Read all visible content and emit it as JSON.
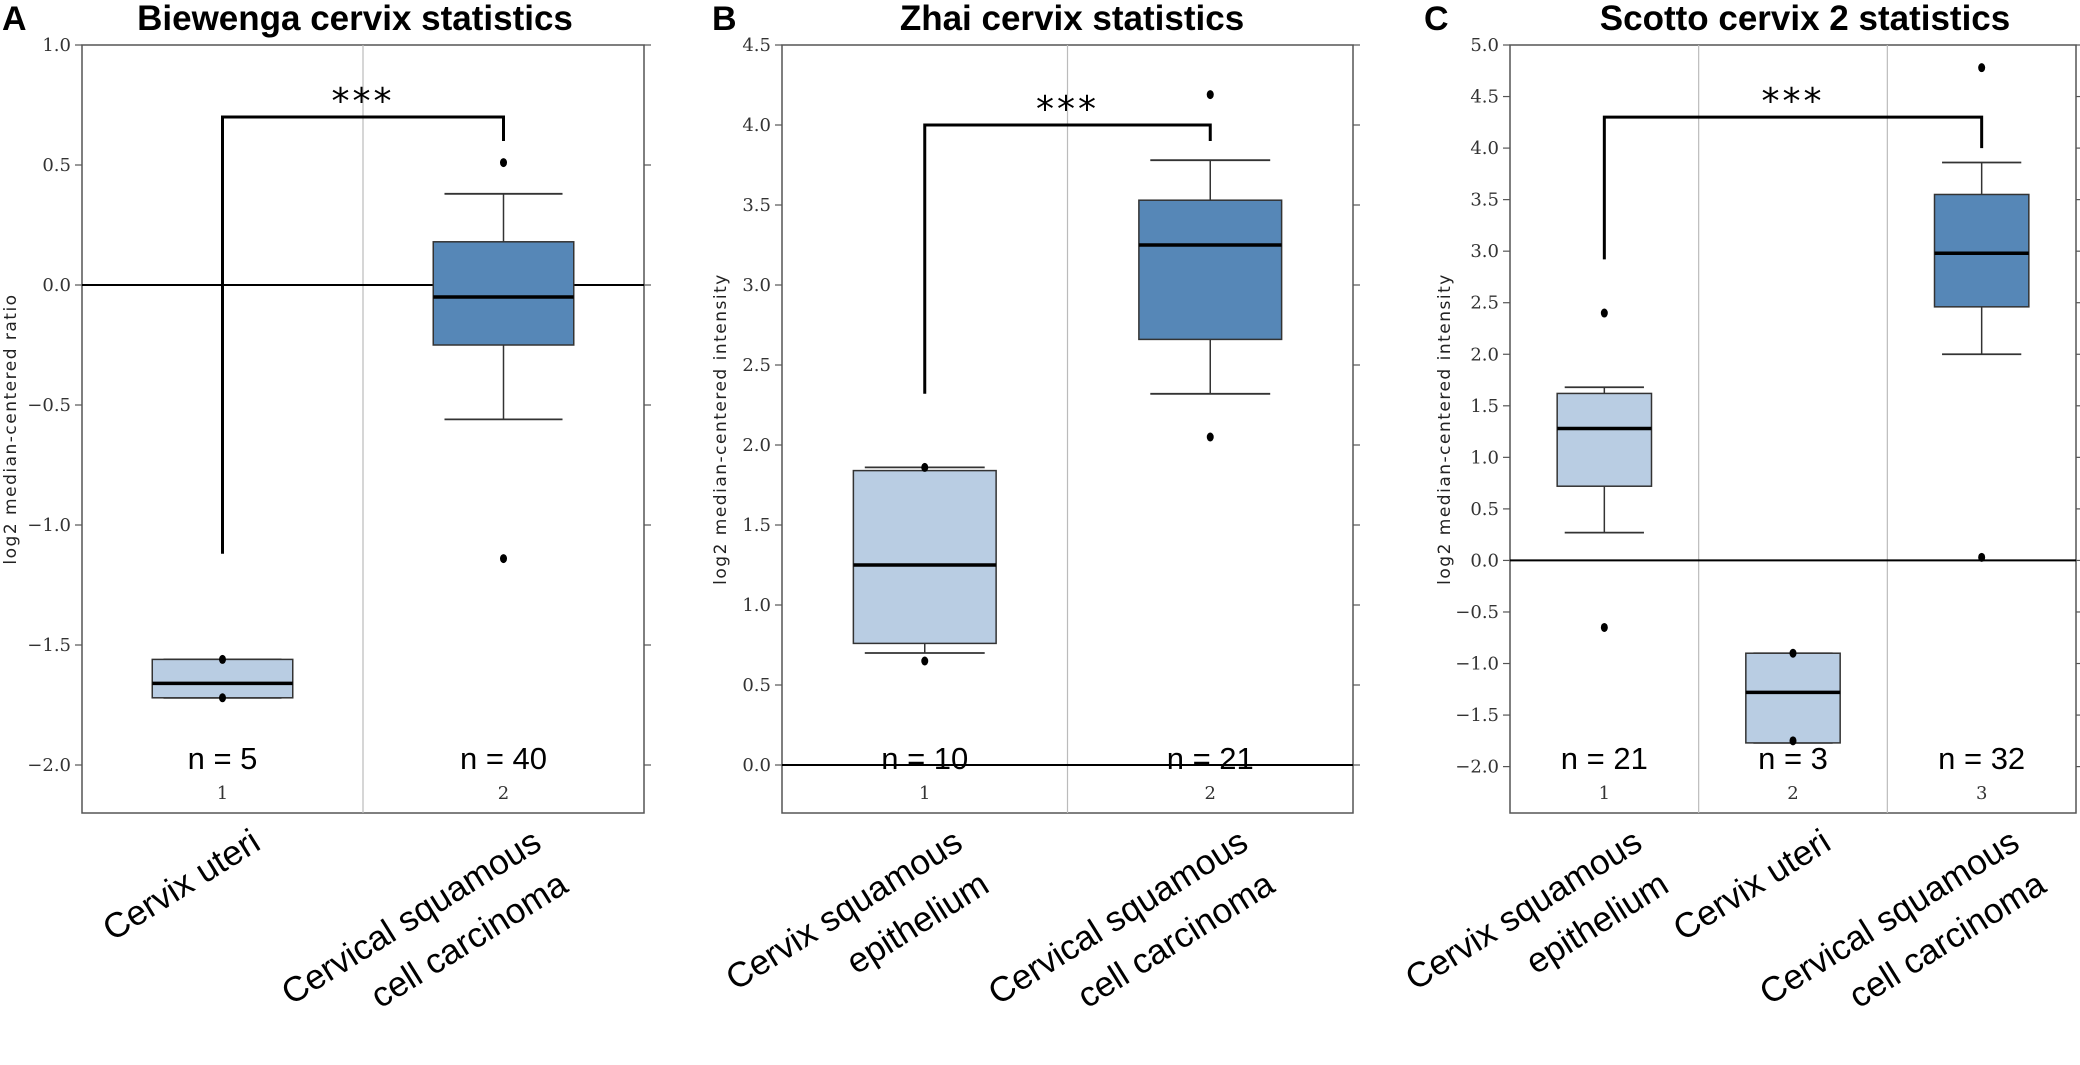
{
  "chart_data": [
    {
      "type": "box",
      "panel_label": "A",
      "title": "Biewenga cervix statistics",
      "ylabel": "log2 median-centered ratio",
      "ylim": [
        -2.2,
        1.0
      ],
      "yticks": [
        -2.0,
        -1.5,
        -1.0,
        -0.5,
        0.0,
        0.5,
        1.0
      ],
      "ytick_labels": [
        "−2.0",
        "−1.5",
        "−1.0",
        "−0.5",
        "0.0",
        "0.5",
        "1.0"
      ],
      "zero_line": true,
      "groups": [
        {
          "index_label": "1",
          "category": [
            "Cervix uteri"
          ],
          "n_label": "n = 5",
          "color": "#b9cde3",
          "q1": -1.72,
          "median": -1.66,
          "q3": -1.56,
          "whisker_low": -1.72,
          "whisker_high": -1.56,
          "outliers": [
            -1.56,
            -1.72
          ]
        },
        {
          "index_label": "2",
          "category": [
            "Cervical squamous",
            "cell carcinoma"
          ],
          "n_label": "n = 40",
          "color": "#5687b7",
          "q1": -0.25,
          "median": -0.05,
          "q3": 0.18,
          "whisker_low": -0.56,
          "whisker_high": 0.38,
          "outliers": [
            0.51,
            -1.14
          ]
        }
      ],
      "significance": {
        "from": 1,
        "to": 2,
        "label": "***",
        "y": 0.7,
        "left_end": -1.12,
        "right_end": 0.6
      }
    },
    {
      "type": "box",
      "panel_label": "B",
      "title": "Zhai cervix statistics",
      "ylabel": "log2 median-centered intensity",
      "ylim": [
        -0.3,
        4.5
      ],
      "yticks": [
        0.0,
        0.5,
        1.0,
        1.5,
        2.0,
        2.5,
        3.0,
        3.5,
        4.0,
        4.5
      ],
      "ytick_labels": [
        "0.0",
        "0.5",
        "1.0",
        "1.5",
        "2.0",
        "2.5",
        "3.0",
        "3.5",
        "4.0",
        "4.5"
      ],
      "zero_line": true,
      "groups": [
        {
          "index_label": "1",
          "category": [
            "Cervix squamous",
            "epithelium"
          ],
          "n_label": "n = 10",
          "color": "#b9cde3",
          "q1": 0.76,
          "median": 1.25,
          "q3": 1.84,
          "whisker_low": 0.7,
          "whisker_high": 1.86,
          "outliers": [
            1.86,
            0.65
          ]
        },
        {
          "index_label": "2",
          "category": [
            "Cervical squamous",
            "cell carcinoma"
          ],
          "n_label": "n = 21",
          "color": "#5687b7",
          "q1": 2.66,
          "median": 3.25,
          "q3": 3.53,
          "whisker_low": 2.32,
          "whisker_high": 3.78,
          "outliers": [
            4.19,
            2.05
          ]
        }
      ],
      "significance": {
        "from": 1,
        "to": 2,
        "label": "***",
        "y": 4.0,
        "left_end": 2.32,
        "right_end": 3.9
      }
    },
    {
      "type": "box",
      "panel_label": "C",
      "title": "Scotto cervix 2 statistics",
      "ylabel": "log2 median-centered intensity",
      "ylim": [
        -2.45,
        5.0
      ],
      "yticks": [
        -2.0,
        -1.5,
        -1.0,
        -0.5,
        0.0,
        0.5,
        1.0,
        1.5,
        2.0,
        2.5,
        3.0,
        3.5,
        4.0,
        4.5,
        5.0
      ],
      "ytick_labels": [
        "−2.0",
        "−1.5",
        "−1.0",
        "−0.5",
        "0.0",
        "0.5",
        "1.0",
        "1.5",
        "2.0",
        "2.5",
        "3.0",
        "3.5",
        "4.0",
        "4.5",
        "5.0"
      ],
      "zero_line": true,
      "groups": [
        {
          "index_label": "1",
          "category": [
            "Cervix squamous",
            "epithelium"
          ],
          "n_label": "n = 21",
          "color": "#b9cde3",
          "q1": 0.72,
          "median": 1.28,
          "q3": 1.62,
          "whisker_low": 0.27,
          "whisker_high": 1.68,
          "outliers": [
            2.4,
            -0.65
          ]
        },
        {
          "index_label": "2",
          "category": [
            "Cervix uteri"
          ],
          "n_label": "n = 3",
          "color": "#b9cde3",
          "q1": -1.77,
          "median": -1.28,
          "q3": -0.9,
          "whisker_low": -1.77,
          "whisker_high": -0.9,
          "outliers": [
            -0.9,
            -1.75
          ]
        },
        {
          "index_label": "3",
          "category": [
            "Cervical squamous",
            "cell carcinoma"
          ],
          "n_label": "n = 32",
          "color": "#5687b7",
          "q1": 2.46,
          "median": 2.98,
          "q3": 3.55,
          "whisker_low": 2.0,
          "whisker_high": 3.86,
          "outliers": [
            4.78,
            0.03
          ]
        }
      ],
      "significance": {
        "from": 1,
        "to": 3,
        "label": "***",
        "y": 4.3,
        "left_end": 2.92,
        "right_end": 4.0
      }
    }
  ]
}
